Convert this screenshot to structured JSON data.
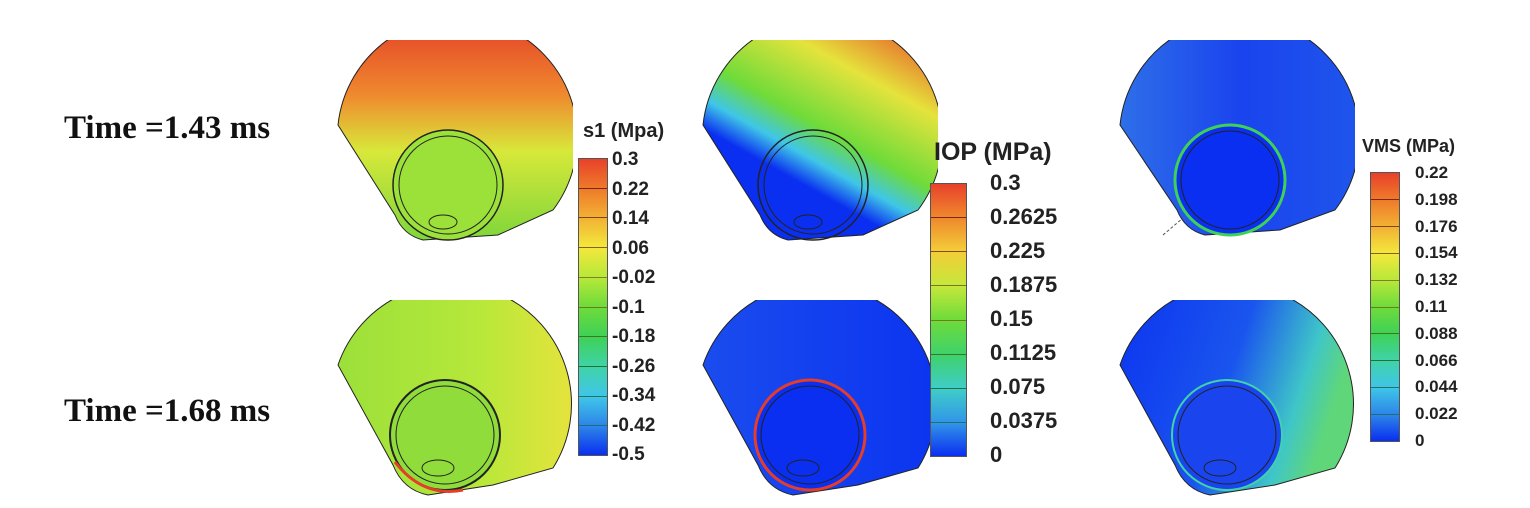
{
  "rows": [
    {
      "label": "Time =1.43 ms"
    },
    {
      "label": "Time =1.68 ms"
    }
  ],
  "colorbars": [
    {
      "title": "s1 (Mpa)",
      "ticks": [
        "0.3",
        "0.22",
        "0.14",
        "0.06",
        "-0.02",
        "-0.1",
        "-0.18",
        "-0.26",
        "-0.34",
        "-0.42",
        "-0.5"
      ]
    },
    {
      "title": "IOP (MPa)",
      "ticks": [
        "0.3",
        "0.2625",
        "0.225",
        "0.1875",
        "0.15",
        "0.1125",
        "0.075",
        "0.0375",
        "0"
      ]
    },
    {
      "title": "VMS (MPa)",
      "ticks": [
        "0.22",
        "0.198",
        "0.176",
        "0.154",
        "0.132",
        "0.11",
        "0.088",
        "0.066",
        "0.044",
        "0.022",
        "0"
      ]
    }
  ],
  "colormap": [
    "#e8412a",
    "#ee7a2a",
    "#f2b134",
    "#f3e83c",
    "#b6e83a",
    "#6edb3a",
    "#3fd156",
    "#3fd3a8",
    "#3fc6e8",
    "#2d86e8",
    "#0a2ff0"
  ]
}
